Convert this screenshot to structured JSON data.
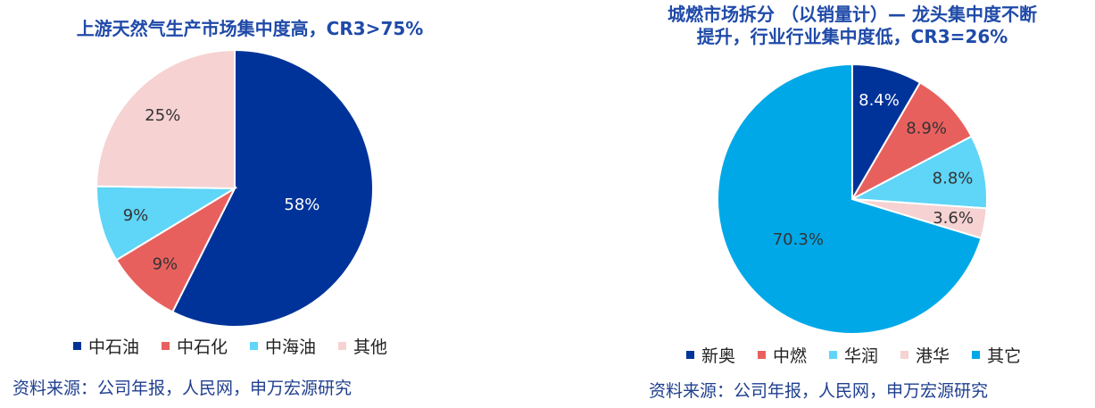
{
  "chart_data": [
    {
      "type": "pie",
      "title": "上游天然气生产市场集中度高，CR3>75%",
      "labels": [
        "中石油",
        "中石化",
        "中海油",
        "其他"
      ],
      "values": [
        58,
        9,
        9,
        25
      ],
      "value_labels": [
        "58%",
        "9%",
        "9%",
        "25%"
      ],
      "colors": [
        "#003399",
        "#e8605e",
        "#5fd5f7",
        "#f6d2d2"
      ],
      "label_colors": [
        "#ffffff",
        "#333333",
        "#333333",
        "#333333"
      ],
      "legend_position": "bottom",
      "source": "资料来源：公司年报，人民网，申万宏源研究"
    },
    {
      "type": "pie",
      "title": "城燃市场拆分 （以销量计）— 龙头集中度不断提升，行业行业集中度低，CR3=26%",
      "title_lines": [
        "城燃市场拆分 （以销量计）— 龙头集中度不断",
        "提升，行业行业集中度低，CR3=26%"
      ],
      "labels": [
        "新奥",
        "中燃",
        "华润",
        "港华",
        "其它"
      ],
      "values": [
        8.4,
        8.9,
        8.8,
        3.6,
        70.3
      ],
      "value_labels": [
        "8.4%",
        "8.9%",
        "8.8%",
        "3.6%",
        "70.3%"
      ],
      "colors": [
        "#003399",
        "#e8605e",
        "#5fd5f7",
        "#f6d2d2",
        "#00a8e8"
      ],
      "label_colors": [
        "#ffffff",
        "#333333",
        "#333333",
        "#333333",
        "#333333"
      ],
      "legend_position": "bottom",
      "source": "资料来源：公司年报，人民网，申万宏源研究"
    }
  ]
}
